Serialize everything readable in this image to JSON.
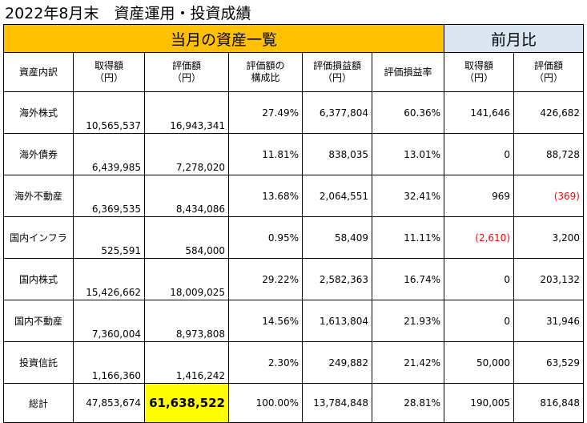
{
  "title": "2022年8月末　資産運用・投資成績",
  "band": {
    "current": "当月の資産一覧",
    "previous": "前月比"
  },
  "headers": [
    "資産内訳",
    "取得額\n（円）",
    "評価額\n（円）",
    "評価額の\n構成比",
    "評価損益額\n（円）",
    "評価損益率",
    "取得額\n（円）",
    "評価額\n（円）"
  ],
  "rows": [
    {
      "name": "海外株式",
      "cost": "10,565,537",
      "value": "16,943,341",
      "ratio": "27.49%",
      "pl": "6,377,804",
      "plrate": "60.36%",
      "d_cost": "141,646",
      "d_value": "426,682"
    },
    {
      "name": "海外債券",
      "cost": "6,439,985",
      "value": "7,278,020",
      "ratio": "11.81%",
      "pl": "838,035",
      "plrate": "13.01%",
      "d_cost": "0",
      "d_value": "88,728"
    },
    {
      "name": "海外不動産",
      "cost": "6,369,535",
      "value": "8,434,086",
      "ratio": "13.68%",
      "pl": "2,064,551",
      "plrate": "32.41%",
      "d_cost": "969",
      "d_value": "(369)"
    },
    {
      "name": "国内インフラ",
      "cost": "525,591",
      "value": "584,000",
      "ratio": "0.95%",
      "pl": "58,409",
      "plrate": "11.11%",
      "d_cost": "(2,610)",
      "d_value": "3,200"
    },
    {
      "name": "国内株式",
      "cost": "15,426,662",
      "value": "18,009,025",
      "ratio": "29.22%",
      "pl": "2,582,363",
      "plrate": "16.74%",
      "d_cost": "0",
      "d_value": "203,132"
    },
    {
      "name": "国内不動産",
      "cost": "7,360,004",
      "value": "8,973,808",
      "ratio": "14.56%",
      "pl": "1,613,804",
      "plrate": "21.93%",
      "d_cost": "0",
      "d_value": "31,946"
    },
    {
      "name": "投資信託",
      "cost": "1,166,360",
      "value": "1,416,242",
      "ratio": "2.30%",
      "pl": "249,882",
      "plrate": "21.42%",
      "d_cost": "50,000",
      "d_value": "63,529"
    }
  ],
  "total": {
    "name": "総計",
    "cost": "47,853,674",
    "value": "61,638,522",
    "ratio": "100.00%",
    "pl": "13,784,848",
    "plrate": "28.81%",
    "d_cost": "190,005",
    "d_value": "816,848"
  },
  "colors": {
    "current_band": "#ffc000",
    "previous_band": "#dce6f2",
    "highlight": "#ffff00",
    "negative": "#ff0000"
  }
}
